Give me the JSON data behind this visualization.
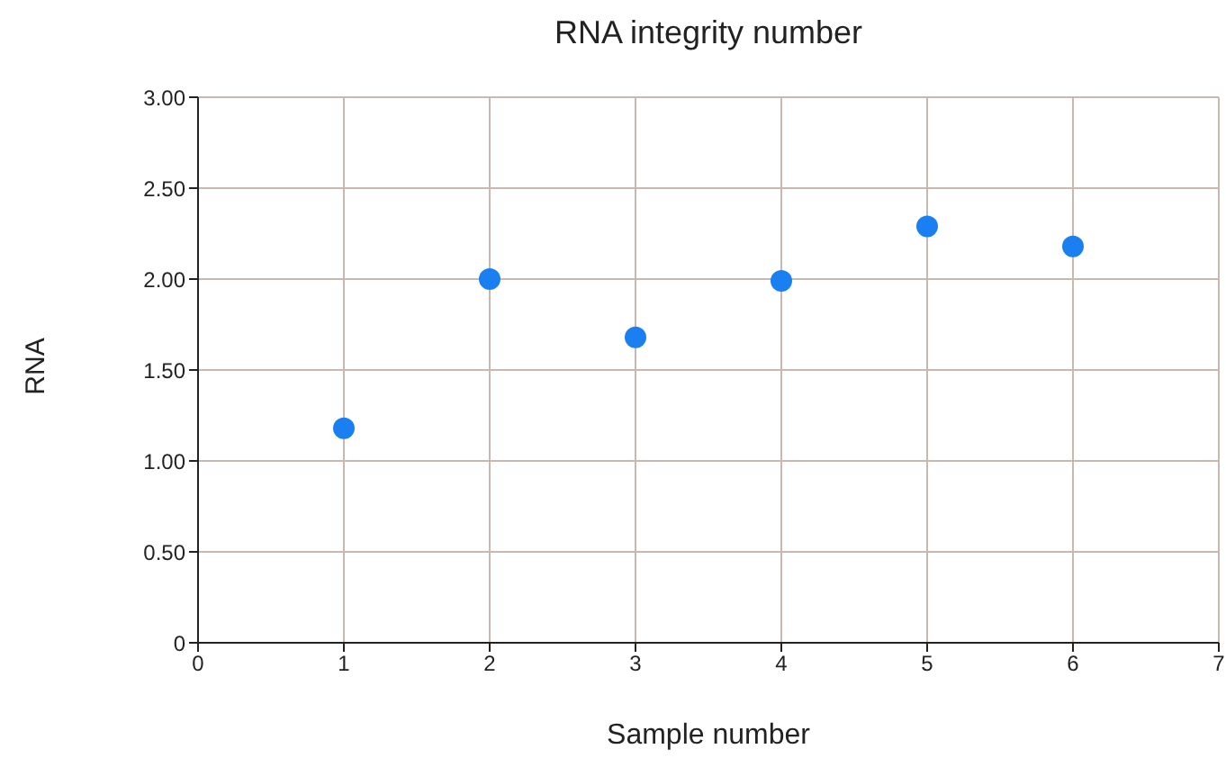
{
  "chart_data": {
    "type": "scatter",
    "title": "RNA integrity number",
    "xlabel": "Sample number",
    "ylabel": "RNA",
    "x": [
      1,
      2,
      3,
      4,
      5,
      6
    ],
    "series": [
      {
        "color": "#1a7ff0",
        "values": [
          1.18,
          2.0,
          1.68,
          1.99,
          2.29,
          2.18
        ]
      }
    ],
    "xlim": [
      0,
      7
    ],
    "xticks": [
      0,
      1,
      2,
      3,
      4,
      5,
      6,
      7
    ],
    "ylim": [
      0,
      3
    ],
    "yticks": [
      {
        "value": 0,
        "label": "0"
      },
      {
        "value": 0.5,
        "label": "0.50"
      },
      {
        "value": 1,
        "label": "1.00"
      },
      {
        "value": 1.5,
        "label": "1.50"
      },
      {
        "value": 2,
        "label": "2.00"
      },
      {
        "value": 2.5,
        "label": "2.50"
      },
      {
        "value": 3,
        "label": "3.00"
      }
    ],
    "grid": true,
    "marker": "circle"
  }
}
